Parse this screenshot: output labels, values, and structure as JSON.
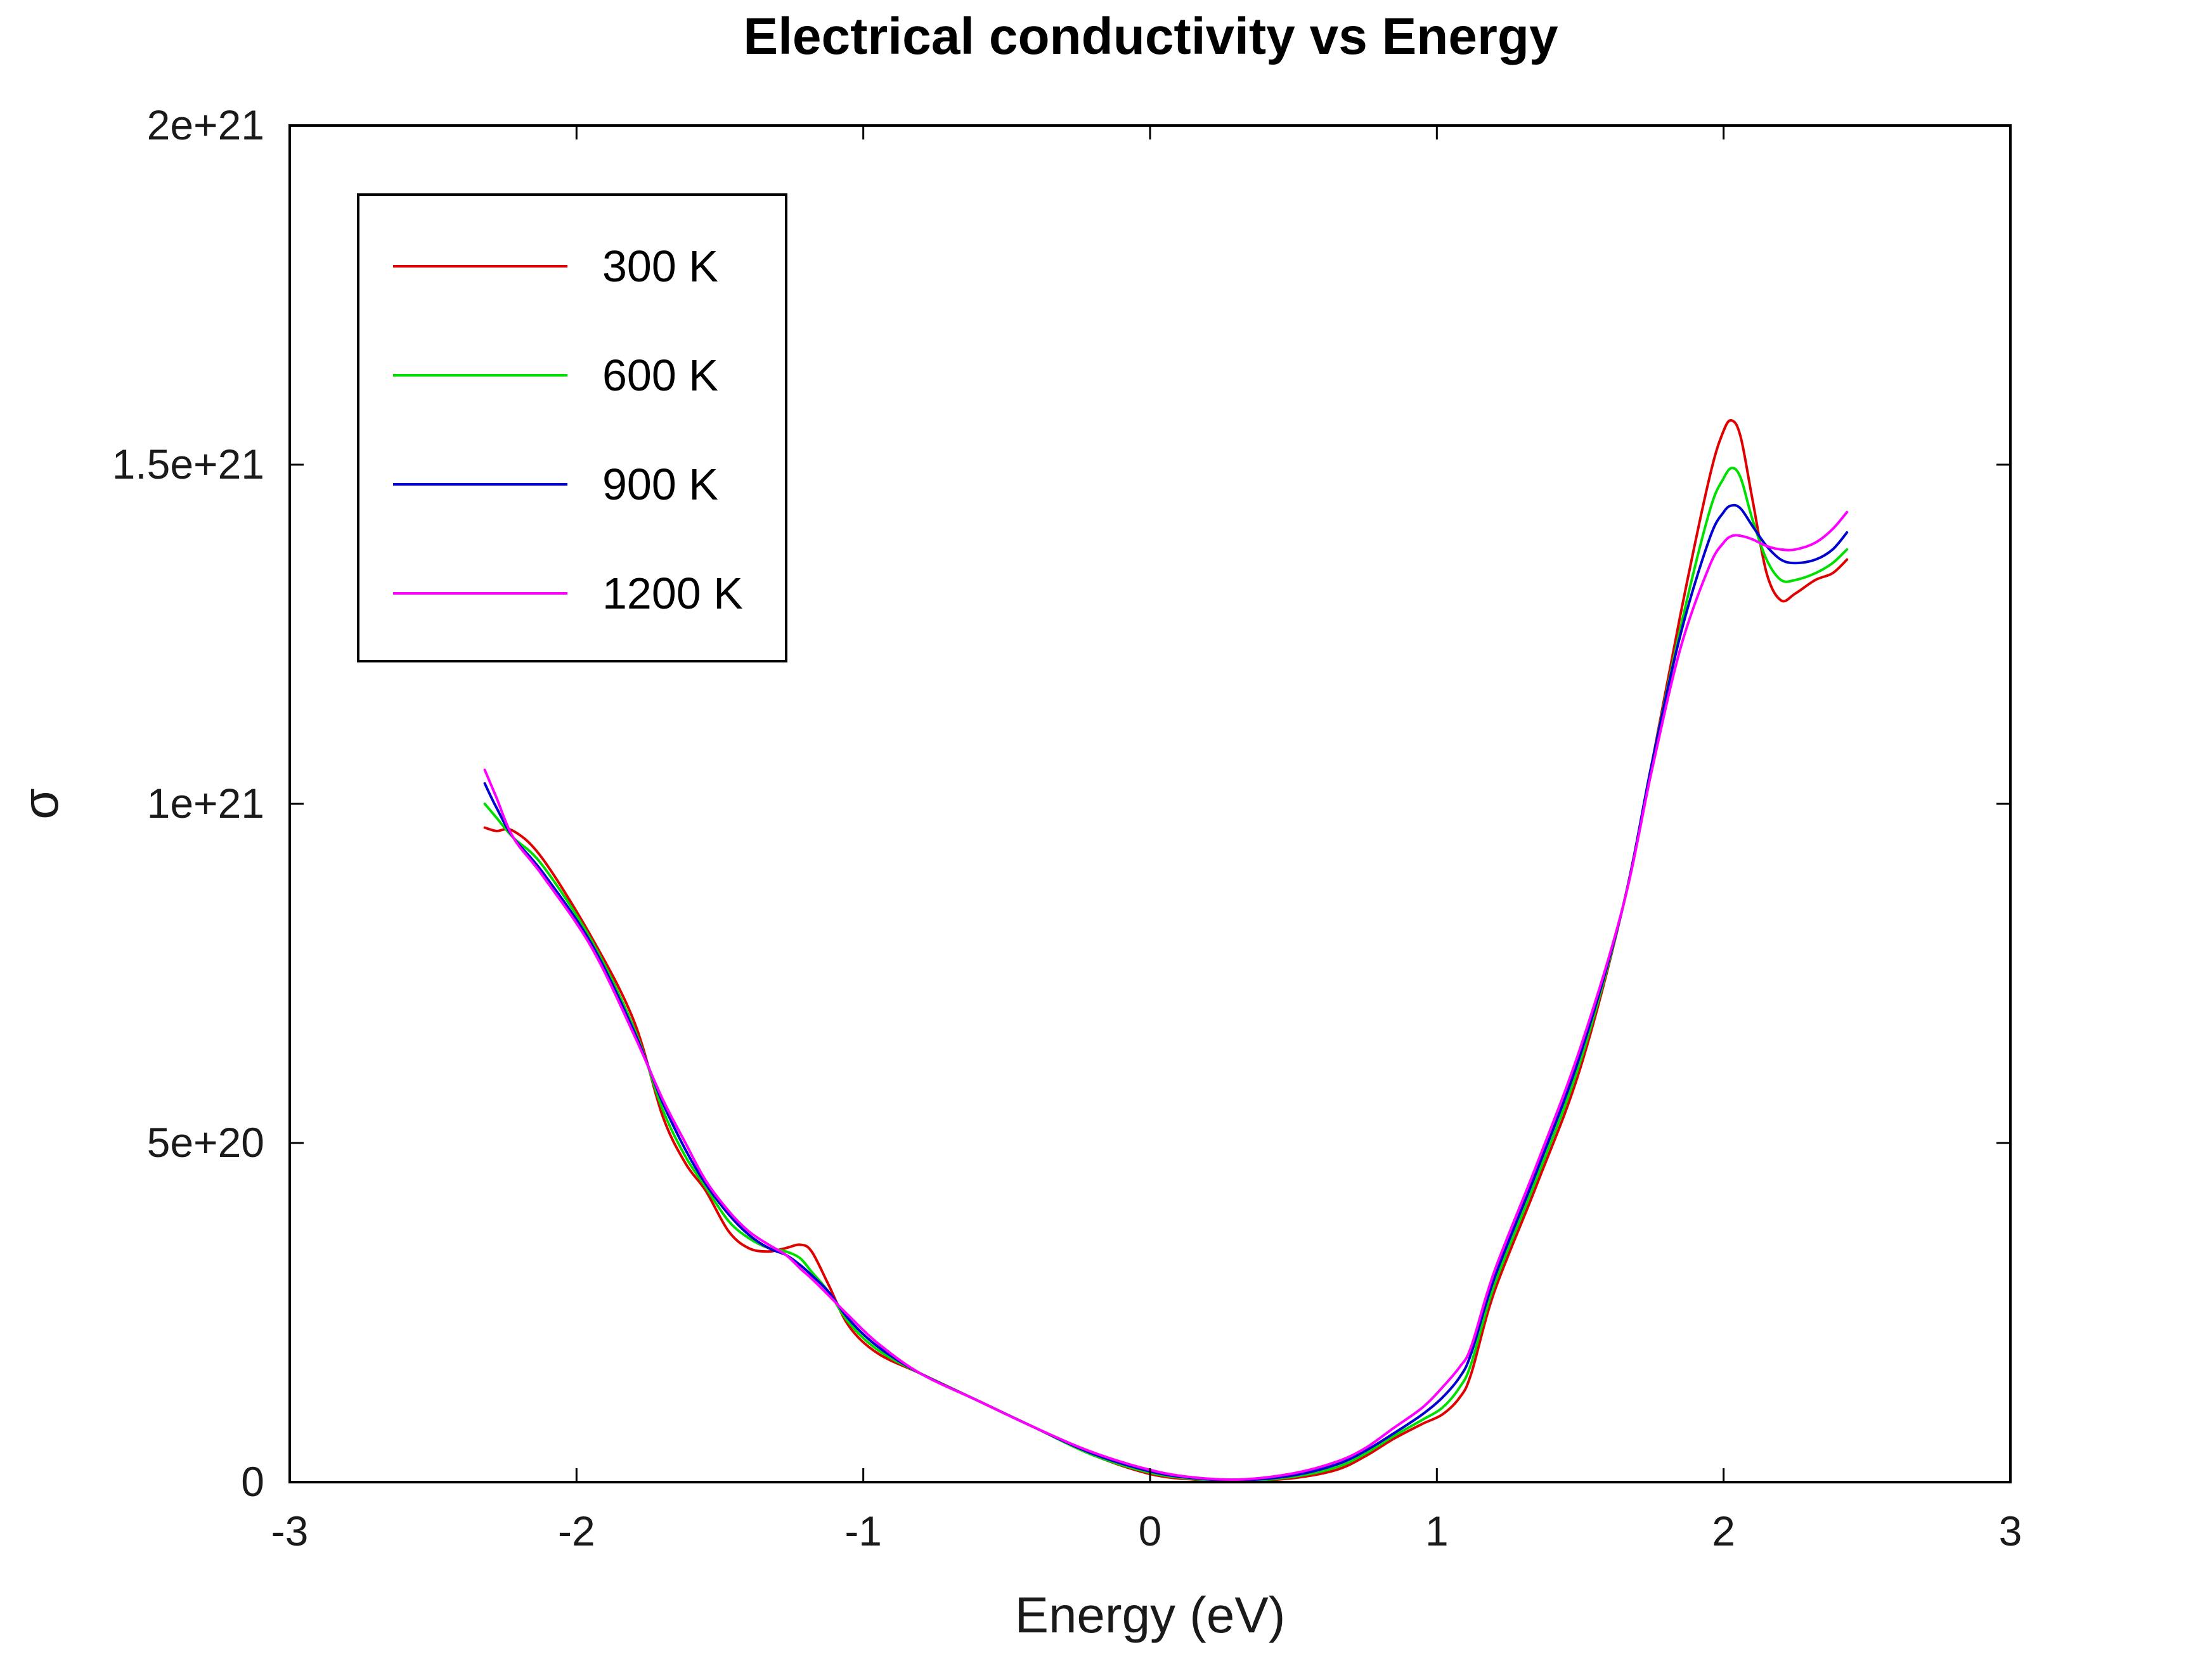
{
  "chart_data": {
    "type": "line",
    "title": "Electrical conductivity vs Energy",
    "xlabel": "Energy (eV)",
    "ylabel": "σ",
    "xlim": [
      -3,
      3
    ],
    "ylim": [
      0,
      2e+21
    ],
    "x_ticks": [
      {
        "value": -3,
        "label": "-3"
      },
      {
        "value": -2,
        "label": "-2"
      },
      {
        "value": -1,
        "label": "-1"
      },
      {
        "value": 0,
        "label": "0"
      },
      {
        "value": 1,
        "label": "1"
      },
      {
        "value": 2,
        "label": "2"
      },
      {
        "value": 3,
        "label": "3"
      }
    ],
    "y_ticks": [
      {
        "value": 0,
        "label": "0"
      },
      {
        "value": 5e+20,
        "label": "5e+20"
      },
      {
        "value": 1e+21,
        "label": "1e+21"
      },
      {
        "value": 1.5e+21,
        "label": "1.5e+21"
      },
      {
        "value": 2e+21,
        "label": "2e+21"
      }
    ],
    "grid": false,
    "legend_position": "top-left",
    "series": [
      {
        "name": "300 K",
        "color": "#e00000",
        "x": [
          -2.32,
          -2.28,
          -2.22,
          -2.12,
          -1.95,
          -1.8,
          -1.7,
          -1.62,
          -1.55,
          -1.47,
          -1.4,
          -1.33,
          -1.27,
          -1.22,
          -1.18,
          -1.12,
          -1.05,
          -0.95,
          -0.8,
          -0.6,
          -0.4,
          -0.2,
          0.0,
          0.15,
          0.32,
          0.5,
          0.65,
          0.75,
          0.85,
          0.95,
          1.02,
          1.08,
          1.12,
          1.2,
          1.35,
          1.5,
          1.65,
          1.75,
          1.85,
          1.95,
          2.0,
          2.03,
          2.06,
          2.1,
          2.15,
          2.2,
          2.25,
          2.32,
          2.38,
          2.43
        ],
        "y": [
          9.65e+20,
          9.6e+20,
          9.6e+20,
          9.2e+20,
          8.05e+20,
          6.8e+20,
          5.4e+20,
          4.7e+20,
          4.3e+20,
          3.7e+20,
          3.45e+20,
          3.4e+20,
          3.45e+20,
          3.5e+20,
          3.4e+20,
          2.9e+20,
          2.3e+20,
          1.9e+20,
          1.6e+20,
          1.2e+20,
          8e+19,
          4e+19,
          1.2e+19,
          4e+18,
          1.5e+18,
          6e+18,
          1.8e+19,
          3.8e+19,
          6.4e+19,
          8.6e+19,
          1e+20,
          1.25e+20,
          1.6e+20,
          2.8e+20,
          4.4e+20,
          6.1e+20,
          8.5e+20,
          1.06e+21,
          1.28e+21,
          1.48e+21,
          1.55e+21,
          1.565e+21,
          1.54e+21,
          1.45e+21,
          1.34e+21,
          1.3e+21,
          1.31e+21,
          1.33e+21,
          1.34e+21,
          1.36e+21
        ]
      },
      {
        "name": "600 K",
        "color": "#00e000",
        "x": [
          -2.32,
          -2.28,
          -2.22,
          -2.12,
          -1.95,
          -1.8,
          -1.7,
          -1.62,
          -1.55,
          -1.47,
          -1.4,
          -1.33,
          -1.27,
          -1.22,
          -1.18,
          -1.12,
          -1.05,
          -0.95,
          -0.8,
          -0.6,
          -0.4,
          -0.2,
          0.0,
          0.15,
          0.32,
          0.5,
          0.65,
          0.75,
          0.85,
          0.95,
          1.02,
          1.08,
          1.12,
          1.2,
          1.35,
          1.5,
          1.65,
          1.75,
          1.85,
          1.95,
          2.0,
          2.03,
          2.06,
          2.1,
          2.15,
          2.2,
          2.25,
          2.32,
          2.38,
          2.43
        ],
        "y": [
          1e+21,
          9.8e+20,
          9.5e+20,
          9.1e+20,
          8e+20,
          6.7e+20,
          5.5e+20,
          4.8e+20,
          4.35e+20,
          3.85e+20,
          3.6e+20,
          3.45e+20,
          3.4e+20,
          3.3e+20,
          3.1e+20,
          2.8e+20,
          2.35e+20,
          1.95e+20,
          1.6e+20,
          1.2e+20,
          8e+19,
          4e+19,
          1.4e+19,
          5e+18,
          2e+18,
          8e+18,
          2.2e+19,
          4.2e+19,
          6.8e+19,
          9.2e+19,
          1.1e+20,
          1.4e+20,
          1.75e+20,
          2.9e+20,
          4.5e+20,
          6.2e+20,
          8.5e+20,
          1.06e+21,
          1.26e+21,
          1.43e+21,
          1.48e+21,
          1.495e+21,
          1.48e+21,
          1.42e+21,
          1.36e+21,
          1.33e+21,
          1.33e+21,
          1.34e+21,
          1.355e+21,
          1.375e+21
        ]
      },
      {
        "name": "900 K",
        "color": "#0000d0",
        "x": [
          -2.32,
          -2.28,
          -2.22,
          -2.12,
          -1.95,
          -1.8,
          -1.7,
          -1.62,
          -1.55,
          -1.47,
          -1.4,
          -1.33,
          -1.27,
          -1.22,
          -1.18,
          -1.12,
          -1.05,
          -0.95,
          -0.8,
          -0.6,
          -0.4,
          -0.2,
          0.0,
          0.15,
          0.32,
          0.5,
          0.65,
          0.75,
          0.85,
          0.95,
          1.02,
          1.08,
          1.12,
          1.2,
          1.35,
          1.5,
          1.65,
          1.75,
          1.85,
          1.95,
          2.0,
          2.03,
          2.06,
          2.1,
          2.15,
          2.2,
          2.25,
          2.32,
          2.38,
          2.43
        ],
        "y": [
          1.03e+21,
          9.95e+20,
          9.5e+20,
          9e+20,
          7.95e+20,
          6.65e+20,
          5.6e+20,
          4.9e+20,
          4.4e+20,
          3.95e+20,
          3.65e+20,
          3.45e+20,
          3.35e+20,
          3.2e+20,
          3.05e+20,
          2.8e+20,
          2.4e+20,
          2e+20,
          1.6e+20,
          1.2e+20,
          8e+19,
          4.2e+19,
          1.6e+19,
          6e+18,
          3e+18,
          1e+19,
          2.6e+19,
          4.6e+19,
          7.2e+19,
          1e+20,
          1.25e+20,
          1.55e+20,
          1.9e+20,
          3e+20,
          4.6e+20,
          6.3e+20,
          8.5e+20,
          1.06e+21,
          1.25e+21,
          1.39e+21,
          1.43e+21,
          1.44e+21,
          1.435e+21,
          1.41e+21,
          1.38e+21,
          1.36e+21,
          1.355e+21,
          1.36e+21,
          1.375e+21,
          1.4e+21
        ]
      },
      {
        "name": "1200 K",
        "color": "#ff00ff",
        "x": [
          -2.32,
          -2.28,
          -2.22,
          -2.12,
          -1.95,
          -1.8,
          -1.7,
          -1.62,
          -1.55,
          -1.47,
          -1.4,
          -1.33,
          -1.27,
          -1.22,
          -1.18,
          -1.12,
          -1.05,
          -0.95,
          -0.8,
          -0.6,
          -0.4,
          -0.2,
          0.0,
          0.15,
          0.32,
          0.5,
          0.65,
          0.75,
          0.85,
          0.95,
          1.02,
          1.08,
          1.12,
          1.2,
          1.35,
          1.5,
          1.65,
          1.75,
          1.85,
          1.95,
          2.0,
          2.03,
          2.06,
          2.1,
          2.15,
          2.2,
          2.25,
          2.32,
          2.38,
          2.43
        ],
        "y": [
          1.05e+21,
          1.01e+21,
          9.5e+20,
          8.95e+20,
          7.9e+20,
          6.6e+20,
          5.65e+20,
          5e+20,
          4.45e+20,
          4e+20,
          3.7e+20,
          3.5e+20,
          3.35e+20,
          3.15e+20,
          3e+20,
          2.75e+20,
          2.45e+20,
          2.05e+20,
          1.6e+20,
          1.2e+20,
          8e+19,
          4.4e+19,
          1.8e+19,
          7e+18,
          4e+18,
          1.3e+19,
          3e+19,
          5e+19,
          8e+19,
          1.1e+20,
          1.4e+20,
          1.7e+20,
          2e+20,
          3.1e+20,
          4.7e+20,
          6.4e+20,
          8.5e+20,
          1.05e+21,
          1.23e+21,
          1.35e+21,
          1.385e+21,
          1.395e+21,
          1.395e+21,
          1.39e+21,
          1.38e+21,
          1.375e+21,
          1.375e+21,
          1.385e+21,
          1.405e+21,
          1.43e+21
        ]
      }
    ]
  }
}
